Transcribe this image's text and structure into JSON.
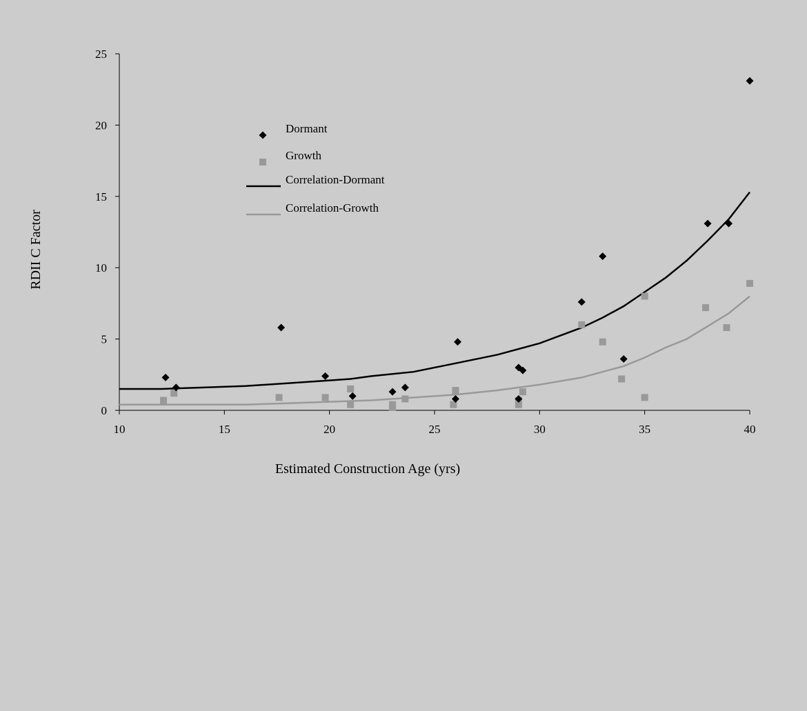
{
  "chart_data": {
    "type": "scatter",
    "title": "",
    "xlabel": "Estimated Construction Age (yrs)",
    "ylabel": "RDII C Factor",
    "xlim": [
      10,
      40
    ],
    "ylim": [
      0,
      25
    ],
    "xticks": [
      10,
      15,
      20,
      25,
      30,
      35,
      40
    ],
    "yticks": [
      0,
      5,
      10,
      15,
      20,
      25
    ],
    "grid": false,
    "legend_placement": "upper-left inside plot",
    "colors": {
      "background": "#cccccc",
      "dormant": "#000000",
      "growth": "#999999",
      "correlation_dormant": "#000000",
      "correlation_growth": "#999999"
    },
    "series": [
      {
        "name": "Dormant",
        "kind": "points",
        "marker": "diamond",
        "x": [
          12.2,
          12.7,
          17.7,
          19.8,
          21.1,
          23.0,
          23.6,
          26.0,
          26.1,
          29.0,
          29.0,
          29.2,
          32.0,
          33.0,
          34.0,
          38.0,
          39.0,
          40.0
        ],
        "y": [
          2.3,
          1.6,
          5.8,
          2.4,
          1.0,
          1.3,
          1.6,
          0.8,
          4.8,
          3.0,
          0.8,
          2.8,
          7.6,
          10.8,
          3.6,
          13.1,
          13.1,
          23.1
        ]
      },
      {
        "name": "Growth",
        "kind": "points",
        "marker": "square",
        "x": [
          12.1,
          12.6,
          17.6,
          19.8,
          21.0,
          21.0,
          23.0,
          23.0,
          23.6,
          25.9,
          26.0,
          29.0,
          29.0,
          29.2,
          32.0,
          33.0,
          33.9,
          35.0,
          35.0,
          37.9,
          38.9,
          40.0
        ],
        "y": [
          0.7,
          1.2,
          0.9,
          0.9,
          1.5,
          0.4,
          0.4,
          0.2,
          0.8,
          0.4,
          1.4,
          0.4,
          0.7,
          1.3,
          6.0,
          4.8,
          2.2,
          0.9,
          8.0,
          7.2,
          5.8,
          8.9
        ]
      },
      {
        "name": "Correlation-Dormant",
        "kind": "line",
        "x": [
          10,
          12,
          14,
          16,
          18,
          20,
          21,
          22,
          24,
          26,
          28,
          30,
          32,
          33,
          34,
          35,
          36,
          37,
          38,
          39,
          40
        ],
        "y": [
          1.5,
          1.5,
          1.6,
          1.7,
          1.9,
          2.1,
          2.2,
          2.4,
          2.7,
          3.3,
          3.9,
          4.7,
          5.8,
          6.5,
          7.3,
          8.3,
          9.3,
          10.5,
          11.9,
          13.4,
          15.3
        ]
      },
      {
        "name": "Correlation-Growth",
        "kind": "line",
        "x": [
          10,
          12,
          14,
          16,
          18,
          20,
          22,
          24,
          26,
          28,
          30,
          32,
          33,
          34,
          35,
          36,
          37,
          38,
          39,
          40
        ],
        "y": [
          0.4,
          0.4,
          0.4,
          0.4,
          0.5,
          0.6,
          0.7,
          0.9,
          1.1,
          1.4,
          1.8,
          2.3,
          2.7,
          3.1,
          3.7,
          4.4,
          5.0,
          5.9,
          6.8,
          8.0
        ]
      }
    ]
  }
}
